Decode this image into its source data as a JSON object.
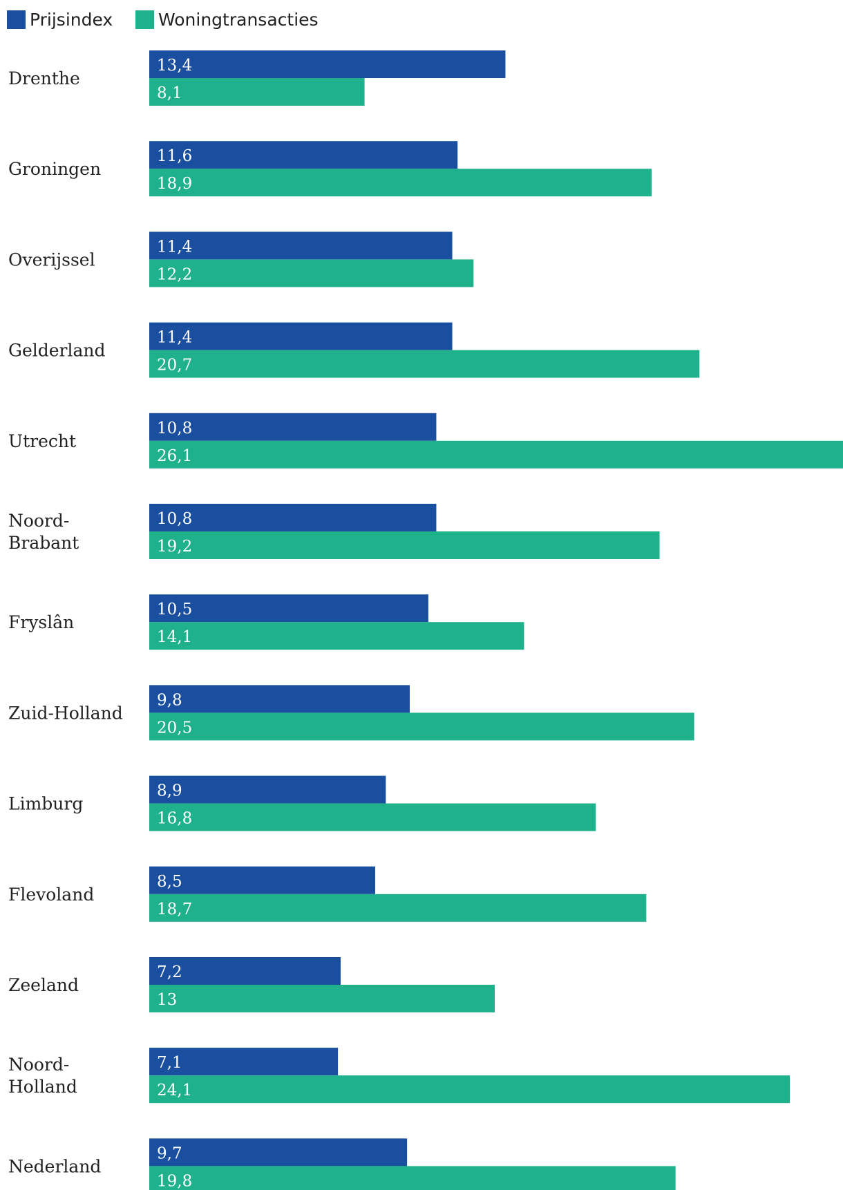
{
  "chart_data": {
    "type": "bar",
    "orientation": "horizontal",
    "title": "",
    "xlabel": "",
    "ylabel": "",
    "xlim": [
      0,
      26.1
    ],
    "grid": false,
    "legend_position": "top-left",
    "categories": [
      [
        "Drenthe"
      ],
      [
        "Groningen"
      ],
      [
        "Overijssel"
      ],
      [
        "Gelderland"
      ],
      [
        "Utrecht"
      ],
      [
        "Noord-",
        "Brabant"
      ],
      [
        "Fryslân"
      ],
      [
        "Zuid-Holland"
      ],
      [
        "Limburg"
      ],
      [
        "Flevoland"
      ],
      [
        "Zeeland"
      ],
      [
        "Noord-",
        "Holland"
      ],
      [
        "Nederland"
      ]
    ],
    "series": [
      {
        "name": "Prijsindex",
        "color": "#1a4fa0",
        "values": [
          13.4,
          11.6,
          11.4,
          11.4,
          10.8,
          10.8,
          10.5,
          9.8,
          8.9,
          8.5,
          7.2,
          7.1,
          9.7
        ],
        "labels": [
          "13,4",
          "11,6",
          "11,4",
          "11,4",
          "10,8",
          "10,8",
          "10,5",
          "9,8",
          "8,9",
          "8,5",
          "7,2",
          "7,1",
          "9,7"
        ]
      },
      {
        "name": "Woningtransacties",
        "color": "#1fb08c",
        "values": [
          8.1,
          18.9,
          12.2,
          20.7,
          26.1,
          19.2,
          14.1,
          20.5,
          16.8,
          18.7,
          13,
          24.1,
          19.8
        ],
        "labels": [
          "8,1",
          "18,9",
          "12,2",
          "20,7",
          "26,1",
          "19,2",
          "14,1",
          "20,5",
          "16,8",
          "18,7",
          "13",
          "24,1",
          "19,8"
        ]
      }
    ]
  }
}
